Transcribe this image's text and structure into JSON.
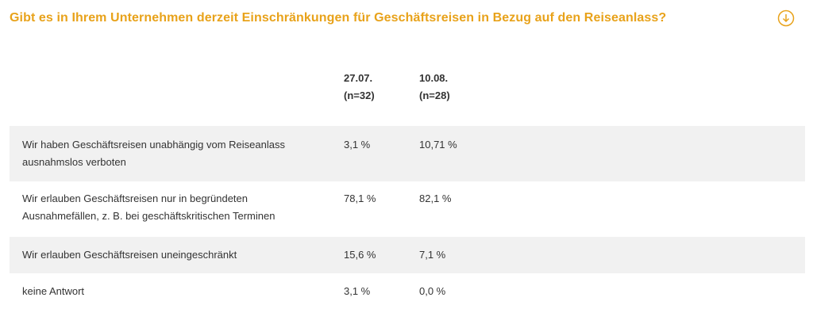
{
  "title": "Gibt es in Ihrem Unternehmen derzeit Einschränkungen für Geschäftsreisen in Bezug auf den Reiseanlass?",
  "download_icon": "download-circle-icon",
  "accent_color": "#e8a21a",
  "columns": [
    {
      "date": "27.07.",
      "n": "(n=32)"
    },
    {
      "date": "10.08.",
      "n": "(n=28)"
    }
  ],
  "rows": [
    {
      "label_line1": "Wir haben Geschäftsreisen unabhängig vom Reiseanlass",
      "label_line2": "ausnahmslos verboten",
      "v1": "3,1 %",
      "v2": "10,71 %"
    },
    {
      "label_line1": "Wir erlauben Geschäftsreisen nur in begründeten",
      "label_line2": "Ausnahmefällen, z. B. bei geschäftskritischen Terminen",
      "v1": "78,1 %",
      "v2": "82,1 %"
    },
    {
      "label_line1": "Wir erlauben Geschäftsreisen uneingeschränkt",
      "label_line2": "",
      "v1": "15,6 %",
      "v2": "7,1 %"
    },
    {
      "label_line1": "keine Antwort",
      "label_line2": "",
      "v1": "3,1 %",
      "v2": "0,0 %"
    }
  ]
}
